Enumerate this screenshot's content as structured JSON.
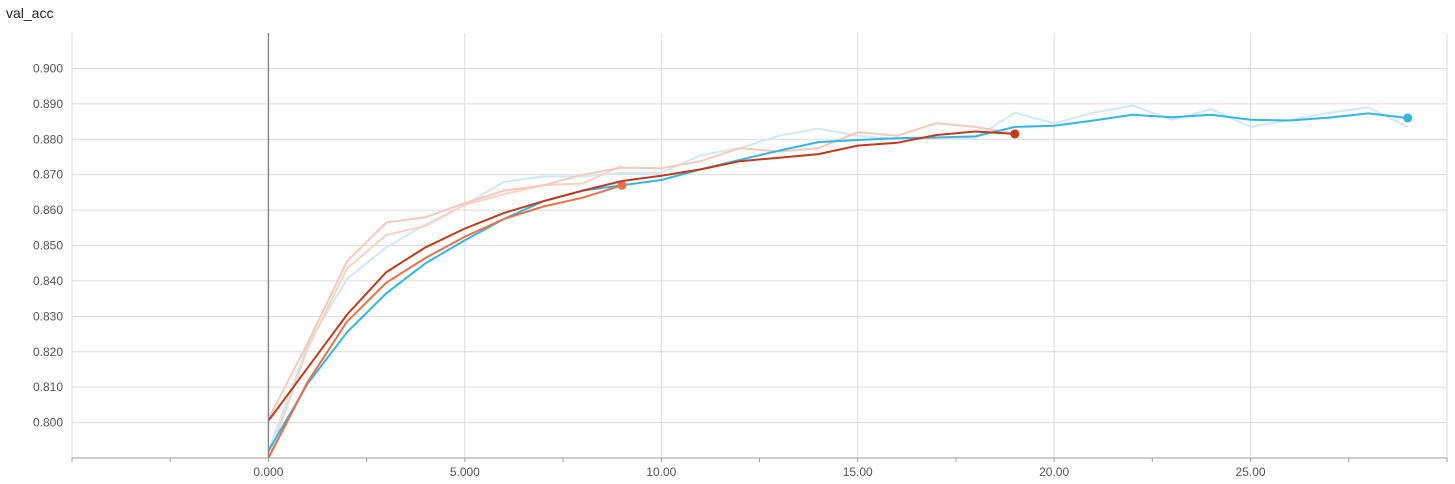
{
  "chart_data": {
    "type": "line",
    "title": "val_acc",
    "xlabel": "",
    "ylabel": "",
    "xlim": [
      -5,
      30
    ],
    "ylim": [
      0.79,
      0.91
    ],
    "grid": true,
    "x_ticks": [
      0,
      5,
      10,
      15,
      20,
      25
    ],
    "x_tick_labels": [
      "0.000",
      "5.000",
      "10.00",
      "15.00",
      "20.00",
      "25.00"
    ],
    "y_ticks": [
      0.8,
      0.81,
      0.82,
      0.83,
      0.84,
      0.85,
      0.86,
      0.87,
      0.88,
      0.89,
      0.9
    ],
    "y_tick_labels": [
      "0.800",
      "0.810",
      "0.820",
      "0.830",
      "0.840",
      "0.850",
      "0.860",
      "0.870",
      "0.880",
      "0.890",
      "0.900"
    ],
    "series": [
      {
        "color": "#33b5e5",
        "raw_color": "#cdeaf6",
        "x": [
          0,
          1,
          2,
          3,
          4,
          5,
          6,
          7,
          8,
          9,
          10,
          11,
          12,
          13,
          14,
          15,
          16,
          17,
          18,
          19,
          20,
          21,
          22,
          23,
          24,
          25,
          26,
          27,
          28,
          29
        ],
        "raw_values": [
          0.792,
          0.822,
          0.8405,
          0.8495,
          0.856,
          0.8615,
          0.868,
          0.8695,
          0.8695,
          0.8705,
          0.8705,
          0.8755,
          0.8775,
          0.881,
          0.883,
          0.881,
          0.88,
          0.8805,
          0.8805,
          0.8875,
          0.8845,
          0.8875,
          0.8895,
          0.8855,
          0.8885,
          0.8835,
          0.8855,
          0.8875,
          0.889,
          0.8835
        ],
        "smoothed_values": [
          0.792,
          0.811,
          0.8255,
          0.8365,
          0.845,
          0.8515,
          0.8575,
          0.8625,
          0.8655,
          0.867,
          0.8685,
          0.8715,
          0.8742,
          0.8768,
          0.8792,
          0.8798,
          0.8803,
          0.8805,
          0.8808,
          0.8835,
          0.8838,
          0.8853,
          0.8869,
          0.8862,
          0.8869,
          0.8855,
          0.8853,
          0.8861,
          0.8873,
          0.886
        ]
      },
      {
        "color": "#e8714a",
        "raw_color": "#f8d3c4",
        "x": [
          0,
          1,
          2,
          3,
          4,
          5,
          6,
          7,
          8,
          9
        ],
        "raw_values": [
          0.79,
          0.821,
          0.8435,
          0.853,
          0.8555,
          0.8615,
          0.8645,
          0.867,
          0.8675,
          0.8725
        ],
        "smoothed_values": [
          0.79,
          0.8115,
          0.8285,
          0.8395,
          0.8465,
          0.8525,
          0.8575,
          0.861,
          0.8635,
          0.867
        ]
      },
      {
        "color": "#c13a1b",
        "raw_color": "#f6c9bb",
        "x": [
          0,
          1,
          2,
          3,
          4,
          5,
          6,
          7,
          8,
          9,
          10,
          11,
          12,
          13,
          14,
          15,
          16,
          17,
          18,
          19
        ],
        "raw_values": [
          0.801,
          0.8225,
          0.8455,
          0.8565,
          0.858,
          0.862,
          0.8655,
          0.867,
          0.87,
          0.872,
          0.8718,
          0.8738,
          0.8775,
          0.8765,
          0.8775,
          0.882,
          0.881,
          0.8845,
          0.8835,
          0.8815
        ],
        "smoothed_values": [
          0.8005,
          0.8155,
          0.8305,
          0.8425,
          0.8495,
          0.8548,
          0.8592,
          0.8625,
          0.8655,
          0.8682,
          0.8697,
          0.8715,
          0.8738,
          0.8748,
          0.8758,
          0.8782,
          0.879,
          0.8812,
          0.8822,
          0.8815
        ]
      }
    ]
  }
}
